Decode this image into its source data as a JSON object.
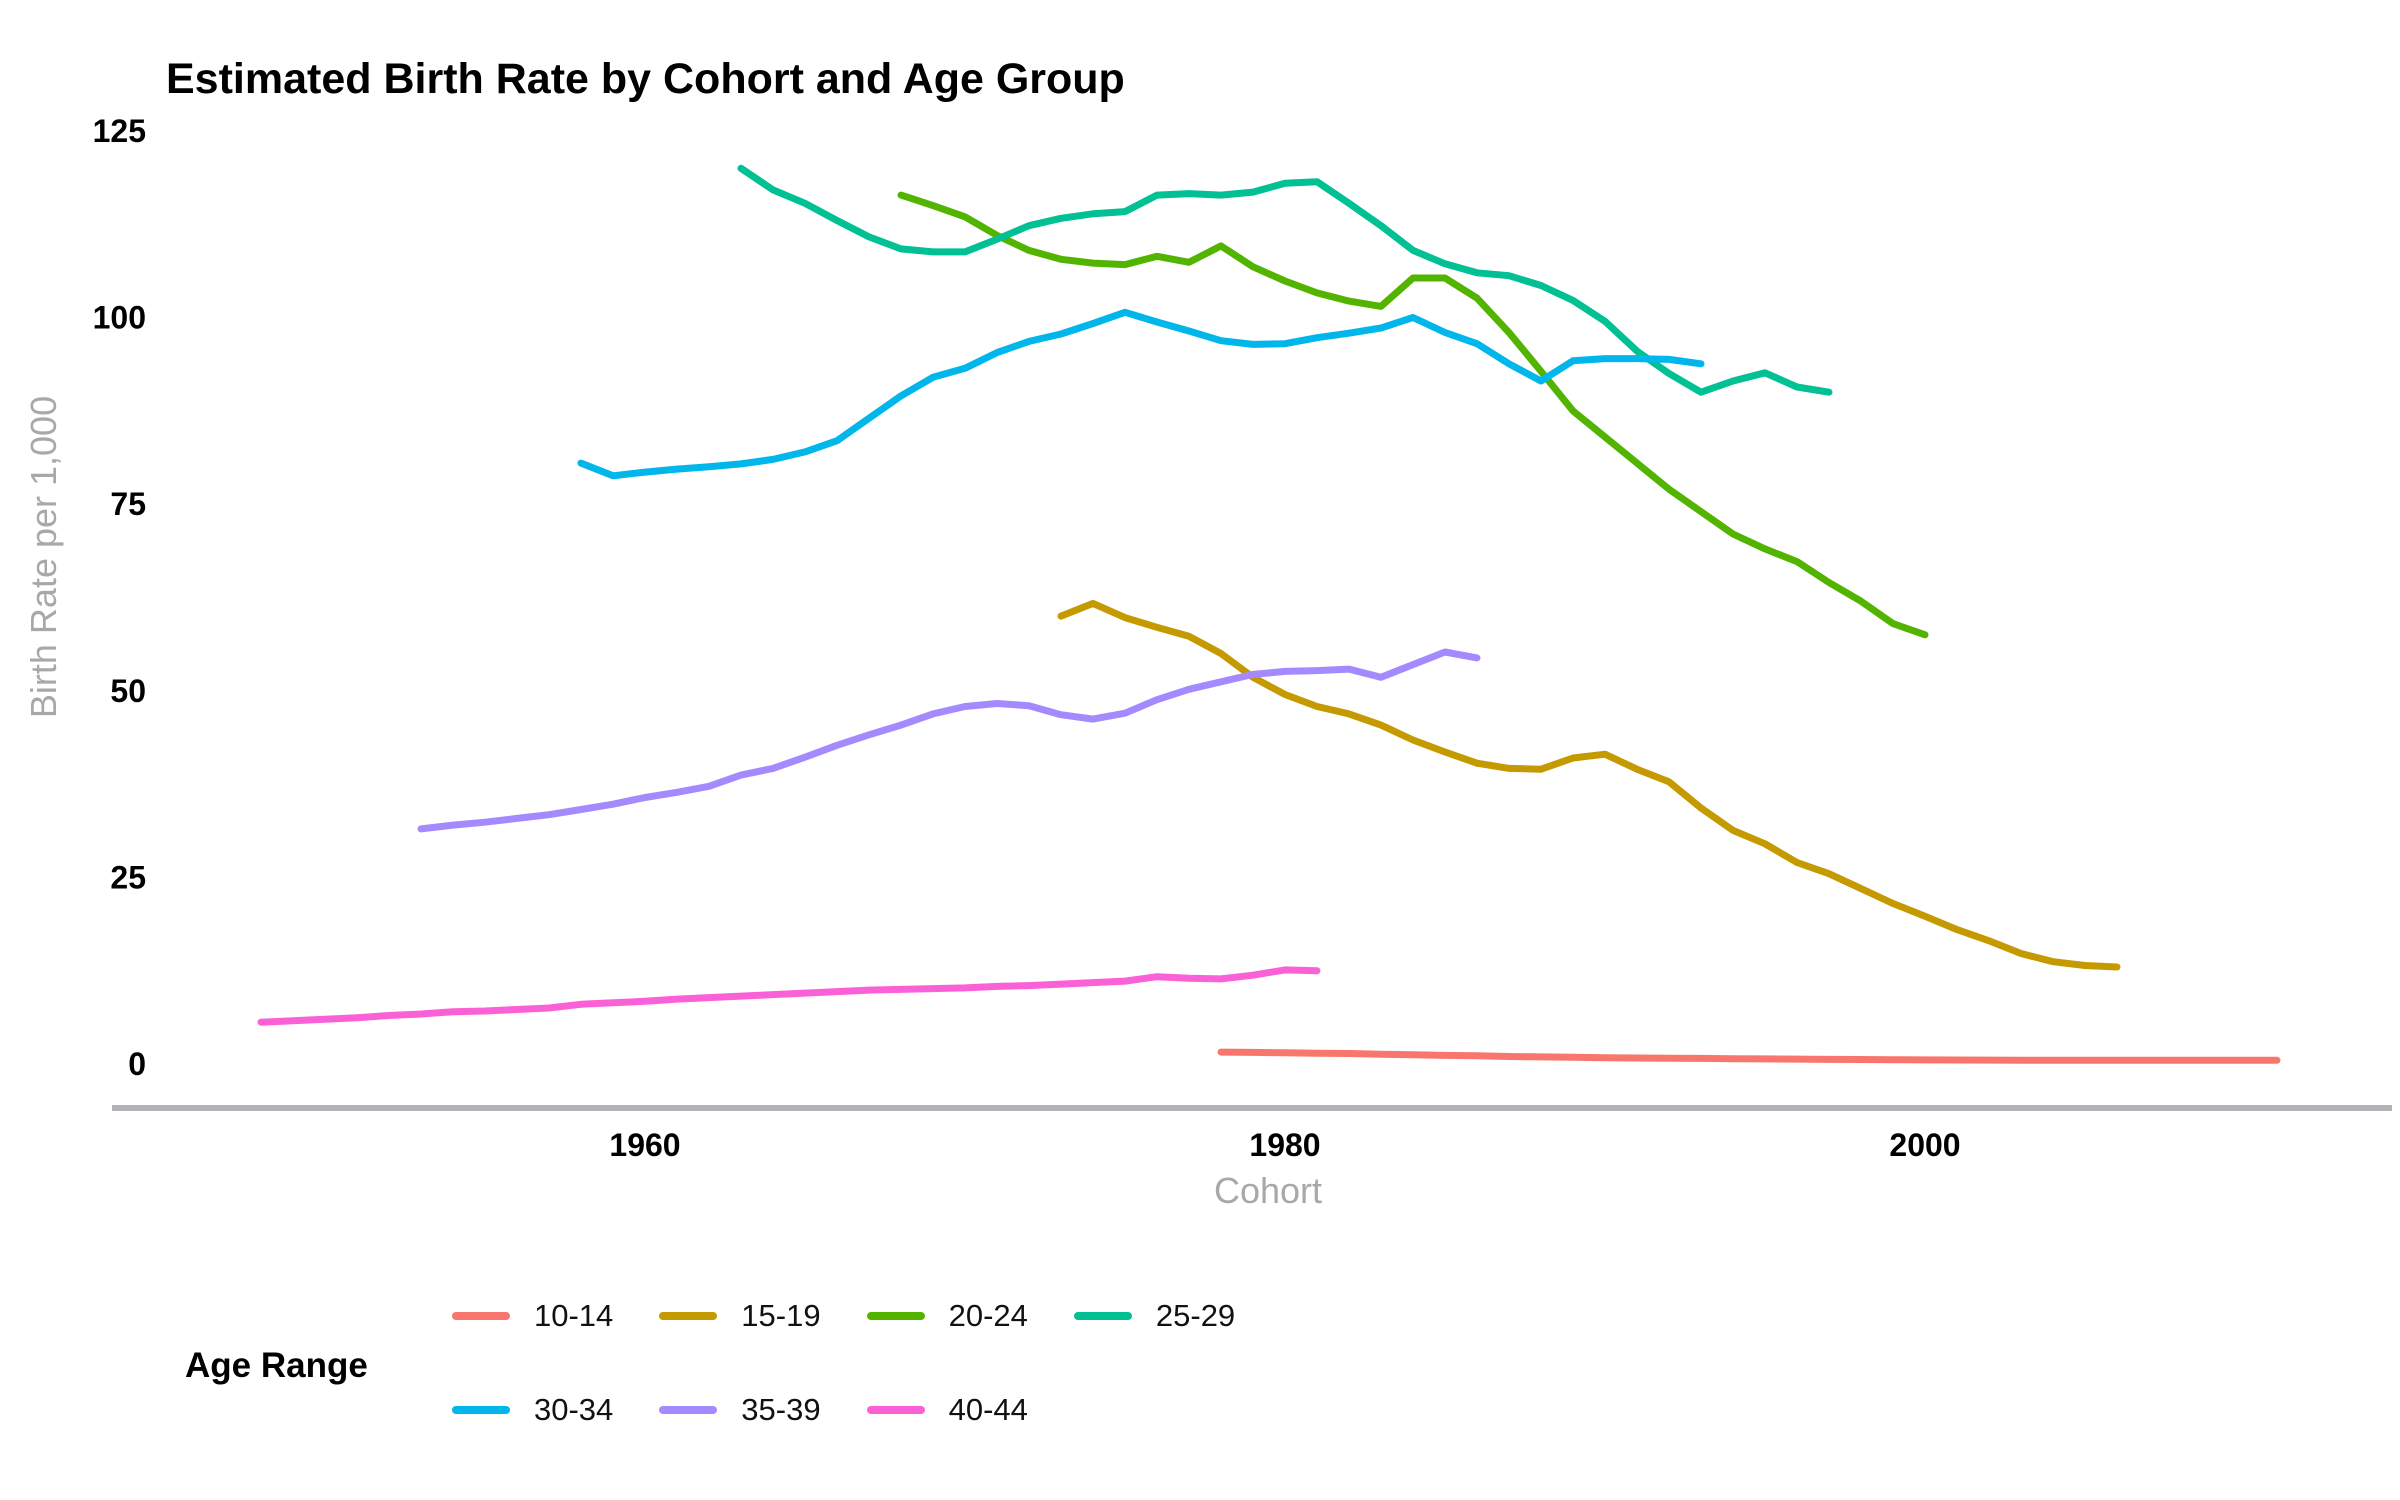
{
  "chart_data": {
    "type": "line",
    "title": "Estimated Birth Rate by Cohort and Age Group",
    "xlabel": "Cohort",
    "ylabel": "Birth Rate per 1,000",
    "legend_title": "Age Range",
    "x_ticks": [
      1960,
      1980,
      2000
    ],
    "y_ticks": [
      0,
      25,
      50,
      75,
      100,
      125
    ],
    "xlim": [
      1945,
      2014
    ],
    "ylim": [
      0,
      125
    ],
    "grid": false,
    "legend_position": "bottom",
    "axis_line_color": "#b3b3b8",
    "tick_label_color": "#000000",
    "axis_title_color": "#a8a8a8",
    "series": [
      {
        "name": "10-14",
        "color": "#F8766D",
        "points": [
          [
            1978,
            1.6
          ],
          [
            1979,
            1.55
          ],
          [
            1980,
            1.5
          ],
          [
            1981,
            1.45
          ],
          [
            1982,
            1.4
          ],
          [
            1983,
            1.3
          ],
          [
            1984,
            1.25
          ],
          [
            1985,
            1.15
          ],
          [
            1986,
            1.1
          ],
          [
            1987,
            1.0
          ],
          [
            1988,
            0.95
          ],
          [
            1989,
            0.9
          ],
          [
            1990,
            0.85
          ],
          [
            1991,
            0.8
          ],
          [
            1992,
            0.78
          ],
          [
            1993,
            0.75
          ],
          [
            1994,
            0.7
          ],
          [
            1995,
            0.68
          ],
          [
            1996,
            0.65
          ],
          [
            1997,
            0.62
          ],
          [
            1998,
            0.6
          ],
          [
            1999,
            0.58
          ],
          [
            2000,
            0.55
          ],
          [
            2001,
            0.53
          ],
          [
            2002,
            0.52
          ],
          [
            2003,
            0.5
          ],
          [
            2004,
            0.5
          ],
          [
            2005,
            0.5
          ],
          [
            2006,
            0.5
          ],
          [
            2007,
            0.5
          ],
          [
            2008,
            0.5
          ],
          [
            2009,
            0.5
          ],
          [
            2010,
            0.5
          ],
          [
            2011,
            0.5
          ]
        ]
      },
      {
        "name": "15-19",
        "color": "#C49A00",
        "points": [
          [
            1973,
            60.0
          ],
          [
            1974,
            61.7
          ],
          [
            1975,
            59.8
          ],
          [
            1976,
            58.5
          ],
          [
            1977,
            57.3
          ],
          [
            1978,
            55.0
          ],
          [
            1979,
            51.8
          ],
          [
            1980,
            49.5
          ],
          [
            1981,
            47.9
          ],
          [
            1982,
            46.9
          ],
          [
            1983,
            45.4
          ],
          [
            1984,
            43.4
          ],
          [
            1985,
            41.8
          ],
          [
            1986,
            40.3
          ],
          [
            1987,
            39.6
          ],
          [
            1988,
            39.5
          ],
          [
            1989,
            41.0
          ],
          [
            1990,
            41.5
          ],
          [
            1991,
            39.5
          ],
          [
            1992,
            37.8
          ],
          [
            1993,
            34.3
          ],
          [
            1994,
            31.3
          ],
          [
            1995,
            29.5
          ],
          [
            1996,
            27.0
          ],
          [
            1997,
            25.5
          ],
          [
            1998,
            23.5
          ],
          [
            1999,
            21.5
          ],
          [
            2000,
            19.8
          ],
          [
            2001,
            18.0
          ],
          [
            2002,
            16.5
          ],
          [
            2003,
            14.8
          ],
          [
            2004,
            13.7
          ],
          [
            2005,
            13.2
          ],
          [
            2006,
            13.0
          ]
        ]
      },
      {
        "name": "20-24",
        "color": "#53B400",
        "points": [
          [
            1968,
            116.4
          ],
          [
            1969,
            115.0
          ],
          [
            1970,
            113.5
          ],
          [
            1971,
            111.0
          ],
          [
            1972,
            109.0
          ],
          [
            1973,
            107.8
          ],
          [
            1974,
            107.3
          ],
          [
            1975,
            107.1
          ],
          [
            1976,
            108.2
          ],
          [
            1977,
            107.4
          ],
          [
            1978,
            109.6
          ],
          [
            1979,
            106.8
          ],
          [
            1980,
            104.9
          ],
          [
            1981,
            103.3
          ],
          [
            1982,
            102.2
          ],
          [
            1983,
            101.5
          ],
          [
            1984,
            105.3
          ],
          [
            1985,
            105.3
          ],
          [
            1986,
            102.6
          ],
          [
            1987,
            98.0
          ],
          [
            1988,
            92.8
          ],
          [
            1989,
            87.5
          ],
          [
            1990,
            84.0
          ],
          [
            1991,
            80.5
          ],
          [
            1992,
            77.0
          ],
          [
            1993,
            74.0
          ],
          [
            1994,
            71.0
          ],
          [
            1995,
            69.0
          ],
          [
            1996,
            67.3
          ],
          [
            1997,
            64.5
          ],
          [
            1998,
            62.0
          ],
          [
            1999,
            59.0
          ],
          [
            2000,
            57.5
          ]
        ]
      },
      {
        "name": "25-29",
        "color": "#00C094",
        "points": [
          [
            1963,
            120.0
          ],
          [
            1964,
            117.1
          ],
          [
            1965,
            115.3
          ],
          [
            1966,
            113.0
          ],
          [
            1967,
            110.8
          ],
          [
            1968,
            109.2
          ],
          [
            1969,
            108.8
          ],
          [
            1970,
            108.8
          ],
          [
            1971,
            110.5
          ],
          [
            1972,
            112.3
          ],
          [
            1973,
            113.3
          ],
          [
            1974,
            113.9
          ],
          [
            1975,
            114.2
          ],
          [
            1976,
            116.4
          ],
          [
            1977,
            116.6
          ],
          [
            1978,
            116.4
          ],
          [
            1979,
            116.8
          ],
          [
            1980,
            118.0
          ],
          [
            1981,
            118.2
          ],
          [
            1982,
            115.3
          ],
          [
            1983,
            112.3
          ],
          [
            1984,
            109.0
          ],
          [
            1985,
            107.2
          ],
          [
            1986,
            106.0
          ],
          [
            1987,
            105.6
          ],
          [
            1988,
            104.3
          ],
          [
            1989,
            102.3
          ],
          [
            1990,
            99.5
          ],
          [
            1991,
            95.5
          ],
          [
            1992,
            92.5
          ],
          [
            1993,
            90.0
          ],
          [
            1994,
            91.5
          ],
          [
            1995,
            92.6
          ],
          [
            1996,
            90.7
          ],
          [
            1997,
            90.0
          ]
        ]
      },
      {
        "name": "30-34",
        "color": "#00B6EB",
        "points": [
          [
            1958,
            80.5
          ],
          [
            1959,
            78.8
          ],
          [
            1960,
            79.3
          ],
          [
            1961,
            79.7
          ],
          [
            1962,
            80.0
          ],
          [
            1963,
            80.4
          ],
          [
            1964,
            81.0
          ],
          [
            1965,
            82.0
          ],
          [
            1966,
            83.5
          ],
          [
            1967,
            86.5
          ],
          [
            1968,
            89.5
          ],
          [
            1969,
            92.0
          ],
          [
            1970,
            93.2
          ],
          [
            1971,
            95.3
          ],
          [
            1972,
            96.8
          ],
          [
            1973,
            97.8
          ],
          [
            1974,
            99.2
          ],
          [
            1975,
            100.7
          ],
          [
            1976,
            99.4
          ],
          [
            1977,
            98.2
          ],
          [
            1978,
            96.9
          ],
          [
            1979,
            96.4
          ],
          [
            1980,
            96.5
          ],
          [
            1981,
            97.3
          ],
          [
            1982,
            97.9
          ],
          [
            1983,
            98.6
          ],
          [
            1984,
            100.0
          ],
          [
            1985,
            98.0
          ],
          [
            1986,
            96.5
          ],
          [
            1987,
            93.8
          ],
          [
            1988,
            91.5
          ],
          [
            1989,
            94.2
          ],
          [
            1990,
            94.5
          ],
          [
            1991,
            94.5
          ],
          [
            1992,
            94.4
          ],
          [
            1993,
            93.8
          ]
        ]
      },
      {
        "name": "35-39",
        "color": "#A58AFF",
        "points": [
          [
            1953,
            31.5
          ],
          [
            1954,
            32.0
          ],
          [
            1955,
            32.4
          ],
          [
            1956,
            32.9
          ],
          [
            1957,
            33.4
          ],
          [
            1958,
            34.1
          ],
          [
            1959,
            34.8
          ],
          [
            1960,
            35.7
          ],
          [
            1961,
            36.4
          ],
          [
            1962,
            37.2
          ],
          [
            1963,
            38.7
          ],
          [
            1964,
            39.6
          ],
          [
            1965,
            41.1
          ],
          [
            1966,
            42.7
          ],
          [
            1967,
            44.1
          ],
          [
            1968,
            45.4
          ],
          [
            1969,
            46.9
          ],
          [
            1970,
            47.9
          ],
          [
            1971,
            48.3
          ],
          [
            1972,
            48.0
          ],
          [
            1973,
            46.8
          ],
          [
            1974,
            46.2
          ],
          [
            1975,
            47.0
          ],
          [
            1976,
            48.8
          ],
          [
            1977,
            50.2
          ],
          [
            1978,
            51.2
          ],
          [
            1979,
            52.2
          ],
          [
            1980,
            52.6
          ],
          [
            1981,
            52.7
          ],
          [
            1982,
            52.9
          ],
          [
            1983,
            51.8
          ],
          [
            1984,
            53.5
          ],
          [
            1985,
            55.2
          ],
          [
            1986,
            54.4
          ]
        ]
      },
      {
        "name": "40-44",
        "color": "#FB61D7",
        "points": [
          [
            1948,
            5.6
          ],
          [
            1949,
            5.8
          ],
          [
            1950,
            6.0
          ],
          [
            1951,
            6.2
          ],
          [
            1952,
            6.5
          ],
          [
            1953,
            6.7
          ],
          [
            1954,
            7.0
          ],
          [
            1955,
            7.1
          ],
          [
            1956,
            7.3
          ],
          [
            1957,
            7.5
          ],
          [
            1958,
            8.0
          ],
          [
            1959,
            8.2
          ],
          [
            1960,
            8.4
          ],
          [
            1961,
            8.7
          ],
          [
            1962,
            8.9
          ],
          [
            1963,
            9.1
          ],
          [
            1964,
            9.3
          ],
          [
            1965,
            9.5
          ],
          [
            1966,
            9.7
          ],
          [
            1967,
            9.9
          ],
          [
            1968,
            10.0
          ],
          [
            1969,
            10.1
          ],
          [
            1970,
            10.2
          ],
          [
            1971,
            10.4
          ],
          [
            1972,
            10.5
          ],
          [
            1973,
            10.7
          ],
          [
            1974,
            10.9
          ],
          [
            1975,
            11.1
          ],
          [
            1976,
            11.7
          ],
          [
            1977,
            11.5
          ],
          [
            1978,
            11.4
          ],
          [
            1979,
            11.9
          ],
          [
            1980,
            12.6
          ],
          [
            1981,
            12.5
          ]
        ]
      }
    ]
  }
}
